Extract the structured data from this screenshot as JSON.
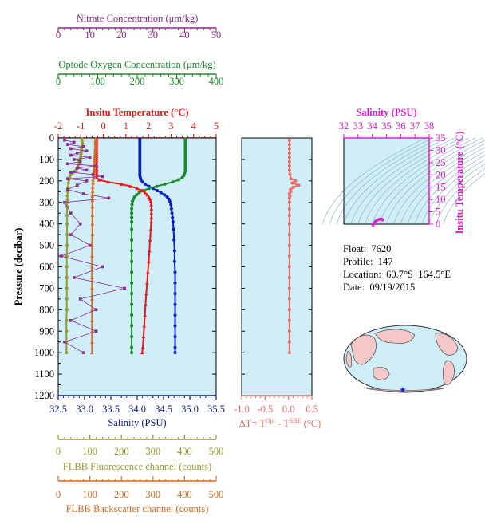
{
  "float_info": {
    "float": "Float:  7620",
    "profile": "Profile:  147",
    "location": "Location:  60.7°S  164.5°E",
    "date": "Date:  09/19/2015"
  },
  "colors": {
    "nitrate": "#8b2b8e",
    "oxygen": "#1a8a2a",
    "temperature": "#e8191a",
    "salinity": "#0a1fcc",
    "fluorescence": "#9a9a2a",
    "backscatter": "#d2691e",
    "delta_t": "#f06a6a",
    "ts_axis": "#e01ad0",
    "panel_bg": "#cfeef7",
    "axis_navy": "#0a1a8c"
  },
  "chart_data": [
    {
      "type": "line",
      "panel": "profiles",
      "ylabel": "Pressure (decibar)",
      "ylim": [
        1200,
        0
      ],
      "yticks": [
        0,
        100,
        200,
        300,
        400,
        500,
        600,
        700,
        800,
        900,
        1000,
        1100,
        1200
      ],
      "axes": {
        "nitrate": {
          "label": "Nitrate Concentration (μm/kg)",
          "lim": [
            0,
            50
          ],
          "ticks": [
            0,
            10,
            20,
            30,
            40,
            50
          ]
        },
        "oxygen": {
          "label": "Optode Oxygen Concentration (μm/kg)",
          "lim": [
            0,
            400
          ],
          "ticks": [
            0,
            100,
            200,
            300,
            400
          ]
        },
        "temperature": {
          "label": "Insitu Temperature (°C)",
          "lim": [
            -2,
            5
          ],
          "ticks": [
            -2,
            -1,
            0,
            1,
            2,
            3,
            4,
            5
          ]
        },
        "salinity": {
          "label": "Salinity (PSU)",
          "lim": [
            32.5,
            35.5
          ],
          "ticks": [
            "32.5",
            "33.0",
            "33.5",
            "34.0",
            "34.5",
            "35.0",
            "35.5"
          ]
        },
        "fluorescence": {
          "label": "FLBB Fluorescence channel (counts)",
          "lim": [
            0,
            500
          ],
          "ticks": [
            0,
            100,
            200,
            300,
            400,
            500
          ]
        },
        "backscatter": {
          "label": "FLBB Backscatter channel (counts)",
          "lim": [
            0,
            500
          ],
          "ticks": [
            0,
            100,
            200,
            300,
            400,
            500
          ]
        }
      },
      "series": [
        {
          "name": "Salinity (PSU)",
          "key": "salinity",
          "y": [
            5,
            15,
            25,
            35,
            45,
            55,
            65,
            75,
            85,
            95,
            105,
            115,
            125,
            135,
            145,
            155,
            165,
            175,
            185,
            195,
            205,
            215,
            225,
            235,
            245,
            255,
            265,
            275,
            285,
            295,
            310,
            330,
            350,
            370,
            390,
            425,
            475,
            525,
            575,
            625,
            675,
            725,
            775,
            825,
            875,
            925,
            975,
            1000
          ],
          "x": [
            34.05,
            34.05,
            34.05,
            34.05,
            34.05,
            34.05,
            34.05,
            34.05,
            34.05,
            34.05,
            34.05,
            34.05,
            34.05,
            34.05,
            34.05,
            34.05,
            34.05,
            34.05,
            34.06,
            34.07,
            34.1,
            34.15,
            34.22,
            34.3,
            34.38,
            34.45,
            34.52,
            34.57,
            34.6,
            34.62,
            34.64,
            34.65,
            34.66,
            34.67,
            34.68,
            34.69,
            34.7,
            34.71,
            34.71,
            34.72,
            34.72,
            34.72,
            34.72,
            34.72,
            34.72,
            34.72,
            34.72,
            34.72
          ]
        },
        {
          "name": "Optode Oxygen Concentration (μm/kg)",
          "key": "oxygen",
          "y": [
            5,
            15,
            25,
            35,
            45,
            55,
            65,
            75,
            85,
            95,
            105,
            115,
            125,
            135,
            145,
            155,
            165,
            175,
            185,
            195,
            205,
            215,
            225,
            235,
            245,
            255,
            265,
            275,
            285,
            295,
            310,
            330,
            350,
            370,
            390,
            425,
            475,
            525,
            575,
            625,
            675,
            725,
            775,
            825,
            875,
            925,
            975,
            1000
          ],
          "x": [
            322,
            322,
            322,
            322,
            322,
            322,
            322,
            322,
            322,
            322,
            322,
            322,
            322,
            322,
            322,
            322,
            320,
            318,
            314,
            305,
            290,
            270,
            250,
            230,
            215,
            205,
            198,
            193,
            190,
            188,
            187,
            186,
            186,
            186,
            186,
            186,
            186,
            186,
            186,
            186,
            186,
            186,
            186,
            186,
            186,
            186,
            186,
            186
          ]
        },
        {
          "name": "Insitu Temperature (°C)",
          "key": "temperature",
          "y": [
            5,
            15,
            25,
            35,
            45,
            55,
            65,
            75,
            85,
            95,
            105,
            115,
            125,
            135,
            145,
            155,
            165,
            175,
            185,
            195,
            205,
            215,
            225,
            235,
            245,
            255,
            265,
            275,
            285,
            295,
            310,
            330,
            350,
            370,
            390,
            425,
            475,
            525,
            575,
            625,
            675,
            725,
            775,
            825,
            875,
            925,
            975,
            1000
          ],
          "x": [
            -0.3,
            -0.3,
            -0.3,
            -0.3,
            -0.3,
            -0.3,
            -0.3,
            -0.3,
            -0.3,
            -0.3,
            -0.3,
            -0.3,
            -0.3,
            -0.3,
            -0.3,
            -0.3,
            -0.3,
            -0.3,
            -0.3,
            -0.2,
            0.2,
            0.8,
            1.2,
            1.5,
            1.7,
            1.85,
            1.95,
            2.02,
            2.07,
            2.1,
            2.12,
            2.13,
            2.13,
            2.13,
            2.12,
            2.1,
            2.07,
            2.04,
            2.01,
            1.97,
            1.94,
            1.9,
            1.87,
            1.84,
            1.81,
            1.78,
            1.75,
            1.72
          ]
        },
        {
          "name": "FLBB Fluorescence channel (counts)",
          "key": "fluorescence",
          "y": [
            5,
            15,
            25,
            35,
            45,
            55,
            65,
            75,
            85,
            95,
            105,
            115,
            125,
            135,
            145,
            155,
            165,
            175,
            185,
            195,
            210,
            230,
            250,
            270,
            290,
            320,
            360,
            400,
            450,
            500,
            550,
            600,
            650,
            700,
            750,
            800,
            850,
            900,
            950,
            1000
          ],
          "x": [
            75,
            75,
            76,
            75,
            75,
            74,
            73,
            72,
            71,
            70,
            68,
            66,
            64,
            62,
            58,
            52,
            45,
            38,
            35,
            34,
            32,
            31,
            30,
            29,
            29,
            28,
            28,
            28,
            28,
            28,
            27,
            27,
            27,
            27,
            27,
            27,
            26,
            26,
            26,
            26
          ]
        },
        {
          "name": "FLBB Backscatter channel (counts)",
          "key": "backscatter",
          "y": [
            5,
            15,
            25,
            35,
            45,
            55,
            65,
            75,
            85,
            95,
            105,
            115,
            125,
            135,
            145,
            155,
            165,
            175,
            185,
            195,
            210,
            230,
            250,
            270,
            290,
            320,
            360,
            400,
            450,
            500,
            550,
            600,
            650,
            700,
            750,
            800,
            850,
            900,
            950,
            1000
          ],
          "x": [
            118,
            118,
            117,
            118,
            118,
            117,
            117,
            116,
            116,
            115,
            115,
            115,
            114,
            114,
            114,
            113,
            113,
            112,
            112,
            110,
            110,
            109,
            109,
            108,
            108,
            108,
            108,
            108,
            108,
            107,
            107,
            107,
            107,
            107,
            107,
            107,
            107,
            107,
            107,
            107
          ]
        },
        {
          "name": "Nitrate Concentration (μm/kg)",
          "key": "nitrate",
          "y": [
            10,
            20,
            30,
            40,
            50,
            60,
            70,
            80,
            90,
            100,
            110,
            120,
            130,
            140,
            150,
            160,
            170,
            180,
            190,
            200,
            220,
            240,
            260,
            280,
            300,
            350,
            400,
            450,
            500,
            550,
            600,
            650,
            700,
            750,
            800,
            850,
            900,
            950,
            1000
          ],
          "x": [
            2,
            5,
            3,
            8,
            4,
            9,
            6,
            4,
            10,
            5,
            7,
            3,
            12,
            6,
            9,
            4,
            11,
            14,
            3,
            9,
            6,
            3,
            8,
            16,
            2,
            4,
            7,
            4,
            10,
            1,
            14,
            5,
            21,
            7,
            12,
            4,
            12,
            2,
            8
          ]
        }
      ]
    },
    {
      "type": "line",
      "panel": "delta_t",
      "xlabel": "ΔT= T^Opt - T^SBE (°C)",
      "xlim": [
        -1.0,
        0.5
      ],
      "xticks": [
        "-1.0",
        "-0.5",
        "0.0",
        "0.5"
      ],
      "ylim": [
        1200,
        0
      ],
      "series": [
        {
          "name": "ΔT",
          "key": "delta_t",
          "y": [
            10,
            30,
            50,
            70,
            90,
            110,
            130,
            150,
            170,
            190,
            200,
            210,
            220,
            230,
            240,
            250,
            260,
            270,
            280,
            300,
            330,
            360,
            400,
            450,
            500,
            550,
            600,
            650,
            700,
            750,
            800,
            850,
            900,
            950,
            1000
          ],
          "x": [
            0.02,
            0.02,
            0.02,
            0.02,
            0.02,
            0.02,
            0.02,
            0.02,
            0.03,
            0.05,
            0.15,
            0.08,
            0.22,
            0.1,
            0.04,
            0.05,
            0.02,
            0.03,
            0.02,
            0.02,
            0.02,
            0.02,
            0.02,
            0.02,
            0.02,
            0.02,
            0.02,
            0.02,
            0.02,
            0.02,
            0.02,
            0.02,
            0.02,
            0.02,
            0.02
          ]
        }
      ]
    },
    {
      "type": "scatter",
      "panel": "ts_diagram",
      "title": "Salinity (PSU)",
      "ylabel": "Insitu Temperature (°C)",
      "xlim": [
        32,
        38
      ],
      "xticks": [
        32,
        33,
        34,
        35,
        36,
        37,
        38
      ],
      "ylim": [
        0,
        35
      ],
      "yticks": [
        0,
        5,
        10,
        15,
        20,
        25,
        30,
        35
      ],
      "series": [
        {
          "name": "T-S",
          "key": "ts",
          "x": [
            34.05,
            34.05,
            34.06,
            34.1,
            34.2,
            34.3,
            34.4,
            34.5,
            34.6,
            34.65,
            34.7,
            34.72
          ],
          "y": [
            -0.3,
            -0.3,
            -0.3,
            0.2,
            1.0,
            1.5,
            1.8,
            2.0,
            2.1,
            2.1,
            1.9,
            1.72
          ]
        }
      ]
    }
  ]
}
